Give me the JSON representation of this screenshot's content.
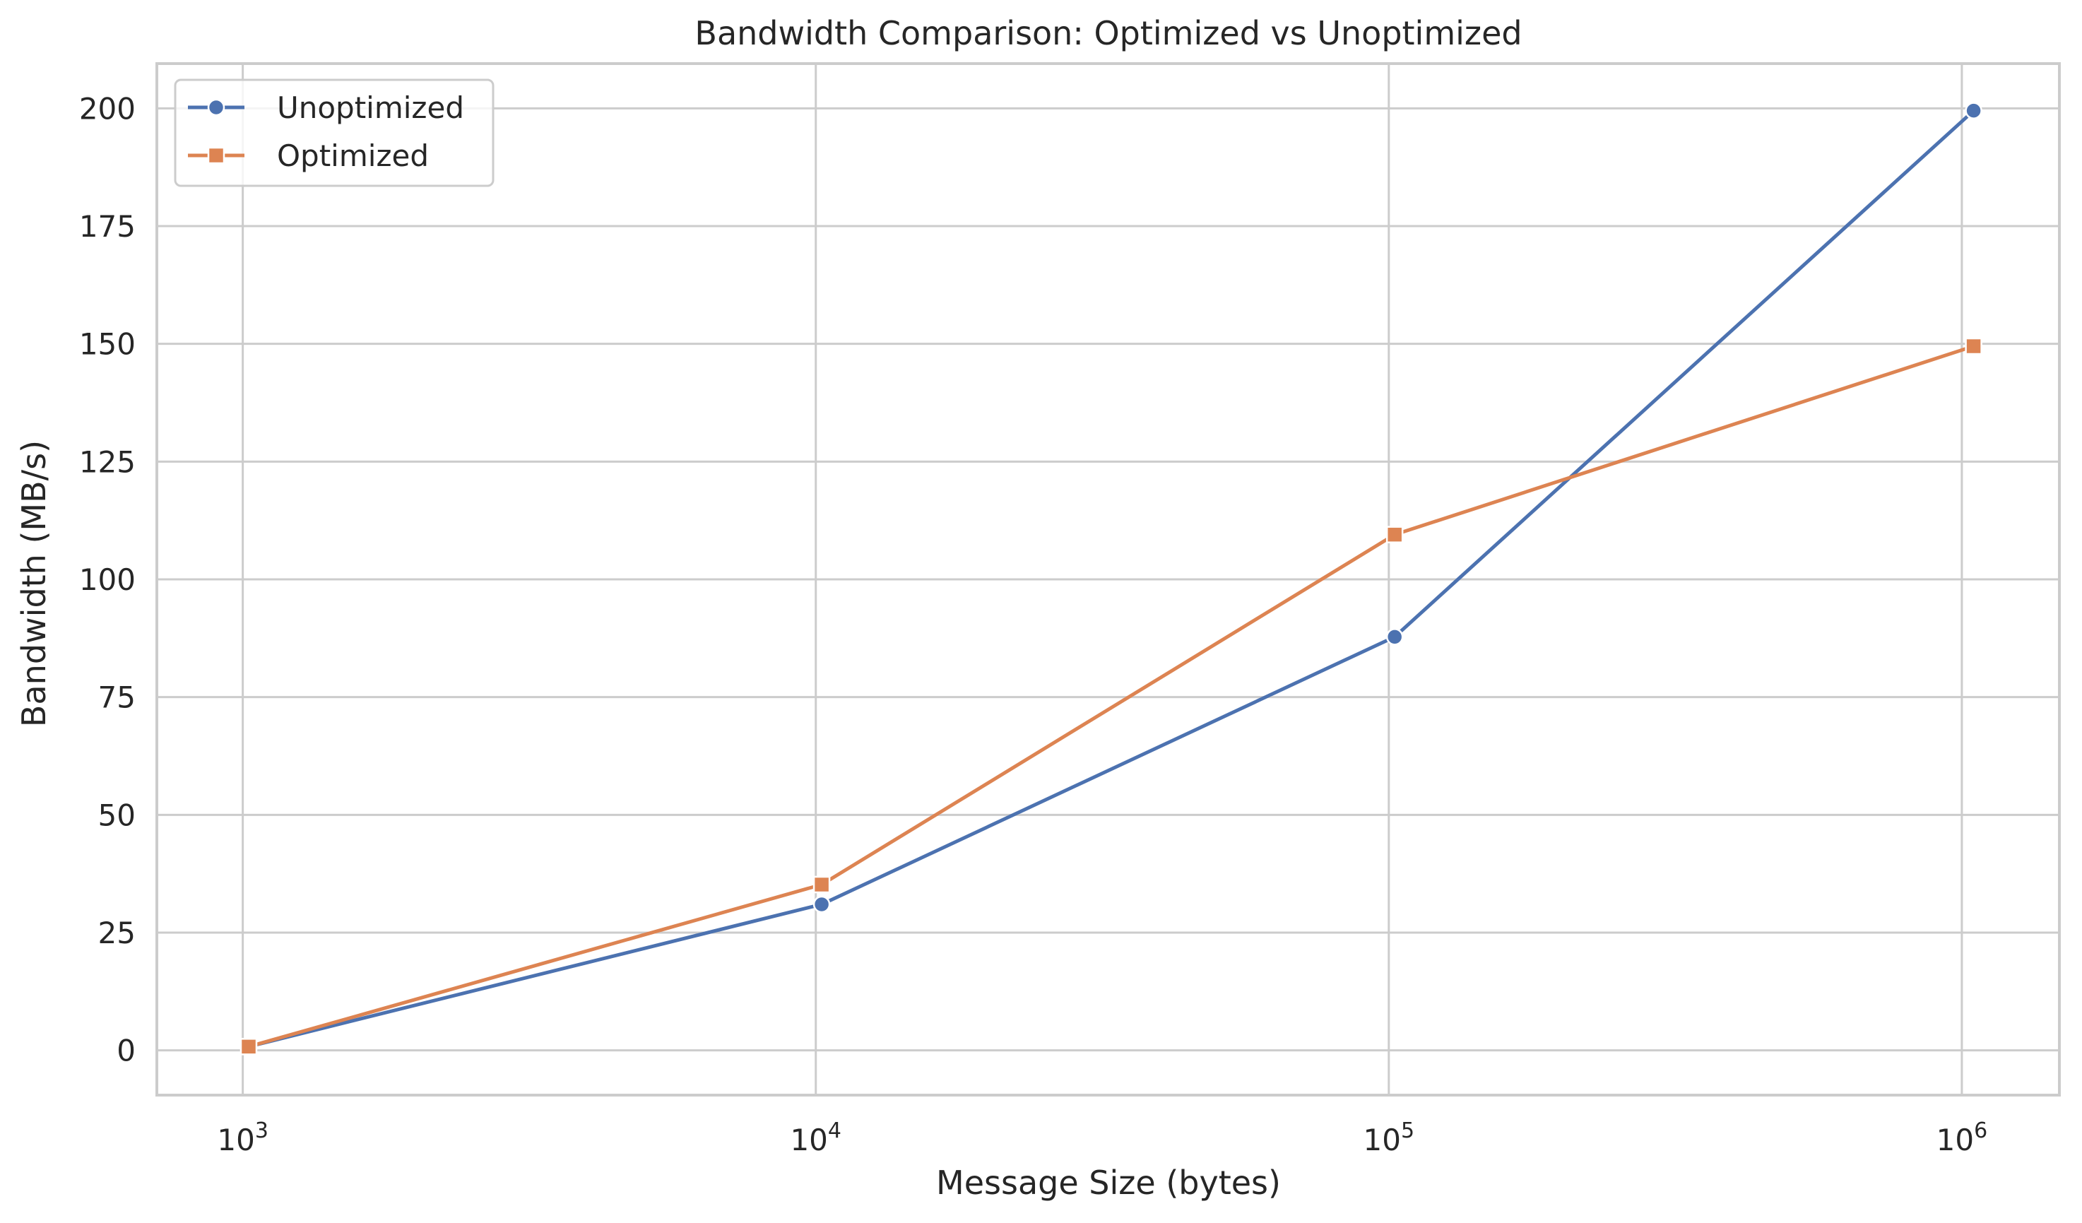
{
  "chart_data": {
    "type": "line",
    "title": "Bandwidth Comparison: Optimized vs Unoptimized",
    "xlabel": "Message Size (bytes)",
    "ylabel": "Bandwidth (MB/s)",
    "xscale": "log",
    "xlim": [
      708,
      1480000
    ],
    "ylim": [
      -9.5,
      209.5
    ],
    "x_ticks": [
      {
        "value": 1000,
        "base": "10",
        "exp": "3"
      },
      {
        "value": 10000,
        "base": "10",
        "exp": "4"
      },
      {
        "value": 100000,
        "base": "10",
        "exp": "5"
      },
      {
        "value": 1000000,
        "base": "10",
        "exp": "6"
      }
    ],
    "y_ticks": [
      0,
      25,
      50,
      75,
      100,
      125,
      150,
      175,
      200
    ],
    "grid": true,
    "legend_position": "top-left",
    "x": [
      1024,
      10240,
      102400,
      1048576
    ],
    "series": [
      {
        "name": "Unoptimized",
        "marker": "circle",
        "color": "#4c72b0",
        "values": [
          0.8,
          31.0,
          87.8,
          199.5
        ]
      },
      {
        "name": "Optimized",
        "marker": "square",
        "color": "#dd8452",
        "values": [
          0.8,
          35.2,
          109.5,
          149.5
        ]
      }
    ]
  }
}
